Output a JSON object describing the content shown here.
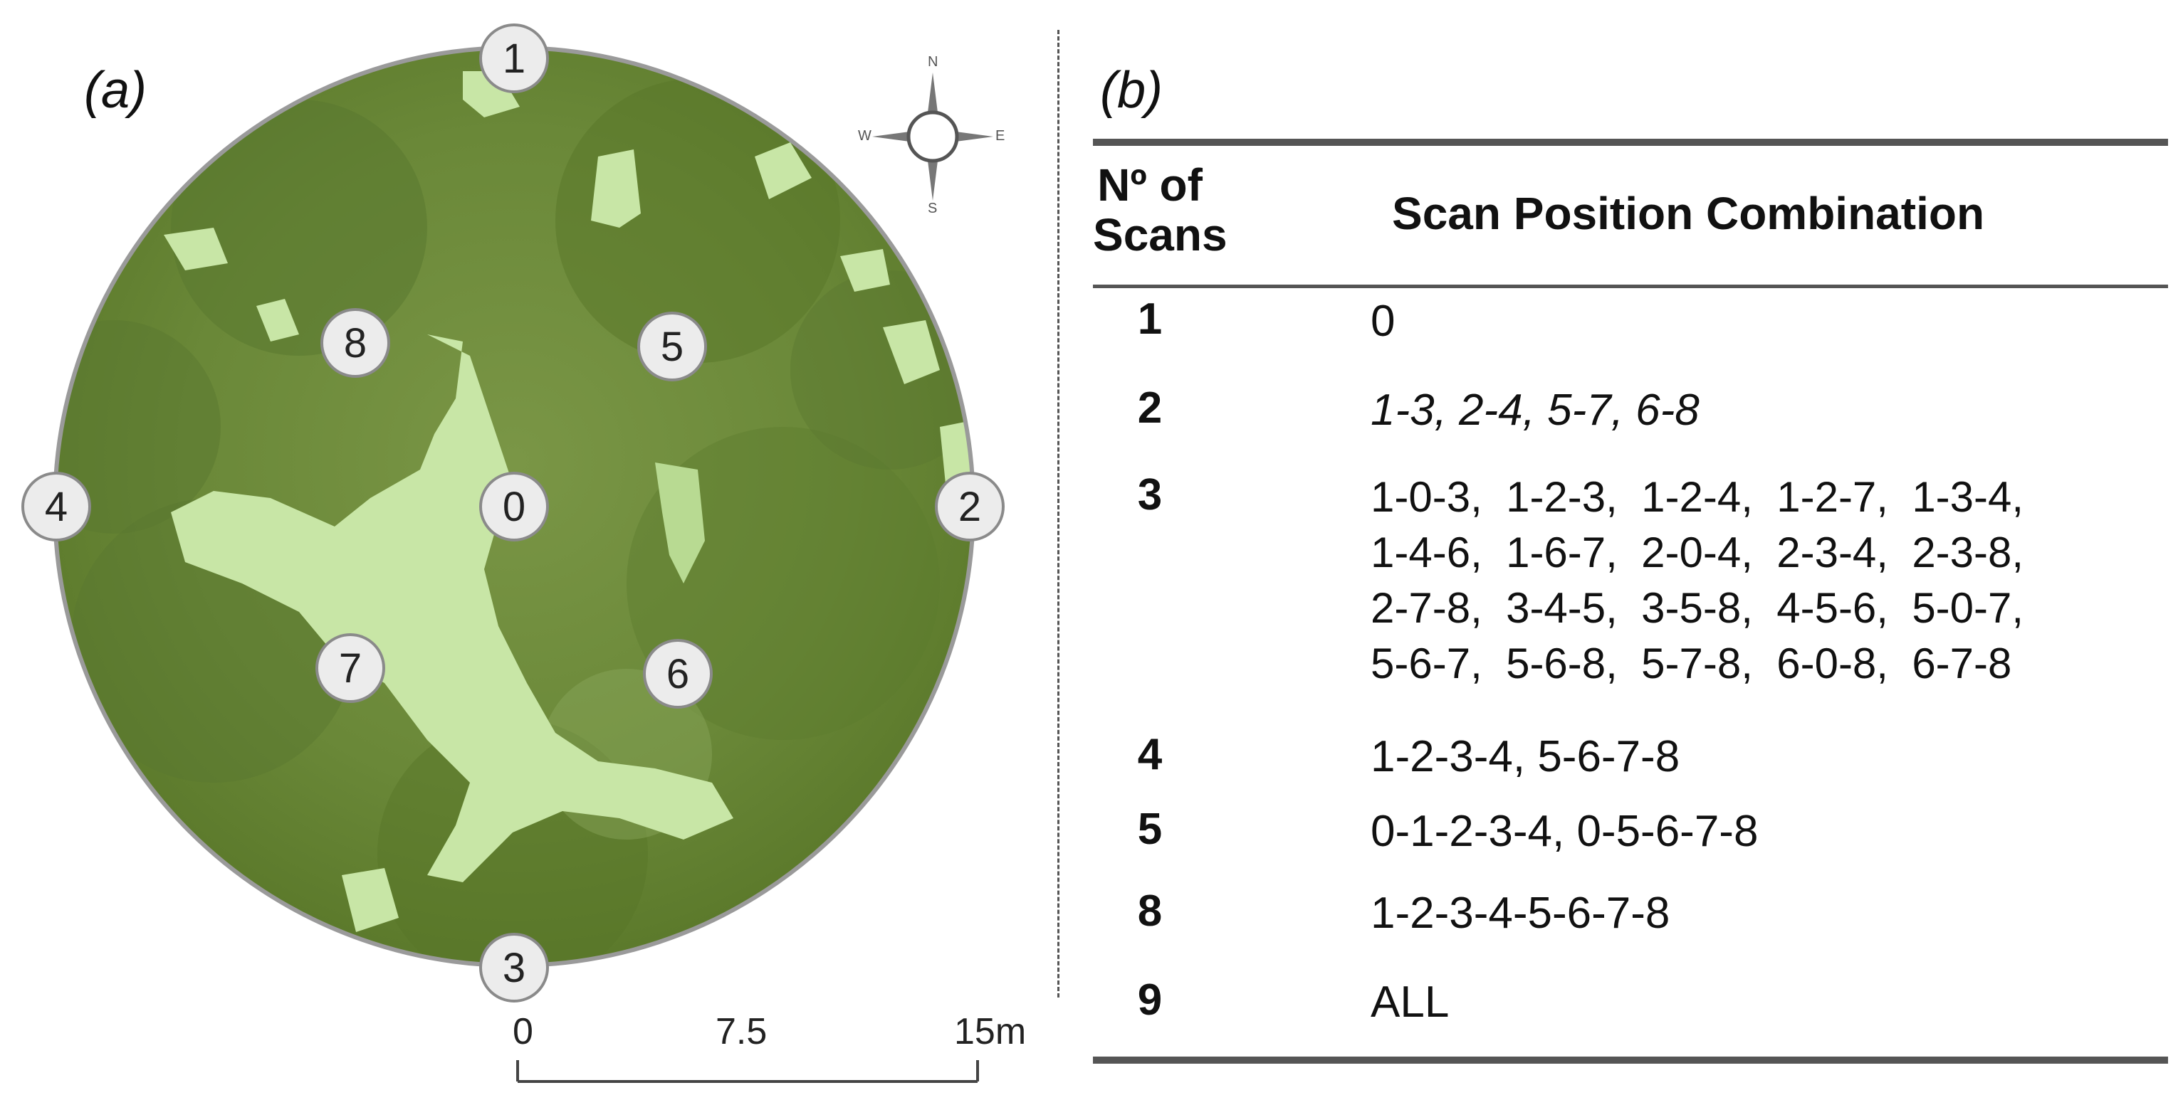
{
  "panel_a": {
    "label": "(a)"
  },
  "panel_b": {
    "label": "(b)"
  },
  "positions": [
    "0",
    "1",
    "2",
    "3",
    "4",
    "5",
    "6",
    "7",
    "8"
  ],
  "compass": {
    "n": "N",
    "s": "S",
    "e": "E",
    "w": "W"
  },
  "scale": {
    "start": "0",
    "mid": "7.5",
    "end": "15m"
  },
  "table": {
    "header_count": "Nº of\nScans",
    "header_combination": "Scan Position Combination",
    "rows": [
      {
        "n": "1",
        "combo": "0"
      },
      {
        "n": "2",
        "combo": "1-3, 2-4, 5-7, 6-8"
      },
      {
        "n": "3",
        "combo": "1-0-3,  1-2-3,  1-2-4,  1-2-7,  1-3-4,\n1-4-6,  1-6-7,  2-0-4,  2-3-4,  2-3-8,\n2-7-8,  3-4-5,  3-5-8,  4-5-6,  5-0-7,\n5-6-7,  5-6-8,  5-7-8,  6-0-8,  6-7-8"
      },
      {
        "n": "4",
        "combo": "1-2-3-4, 5-6-7-8"
      },
      {
        "n": "5",
        "combo": "0-1-2-3-4, 0-5-6-7-8"
      },
      {
        "n": "8",
        "combo": "1-2-3-4-5-6-7-8"
      },
      {
        "n": "9",
        "combo": "ALL"
      }
    ]
  },
  "colors": {
    "canopy_dark": "#5d7a2c",
    "canopy_mid": "#7d9a48",
    "gap_light": "#c8e6a6",
    "border": "#9a9a9a"
  }
}
